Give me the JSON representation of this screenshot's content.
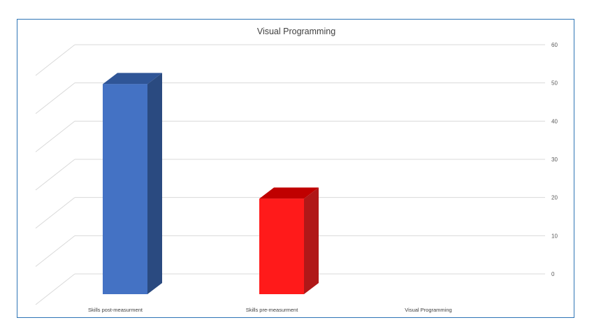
{
  "chart_data": {
    "type": "bar",
    "title": "Visual Programming",
    "categories": [
      "Skills post-measurment",
      "Skills pre-measurment",
      "Visual Programming"
    ],
    "series": [
      {
        "values": [
          55,
          25,
          null
        ]
      }
    ],
    "colors": [
      "#4472c4",
      "#ff1a1a",
      "#ffffff"
    ],
    "side_colors": [
      "#2a4a80",
      "#b01818",
      "#ffffff"
    ],
    "top_colors": [
      "#2f5597",
      "#c00000",
      "#ffffff"
    ],
    "yticks": [
      "60",
      "50",
      "40",
      "30",
      "20",
      "10",
      "0"
    ],
    "ylim": [
      0,
      60
    ],
    "grid": true,
    "y_axis_position": "right",
    "style": "3d-column"
  }
}
